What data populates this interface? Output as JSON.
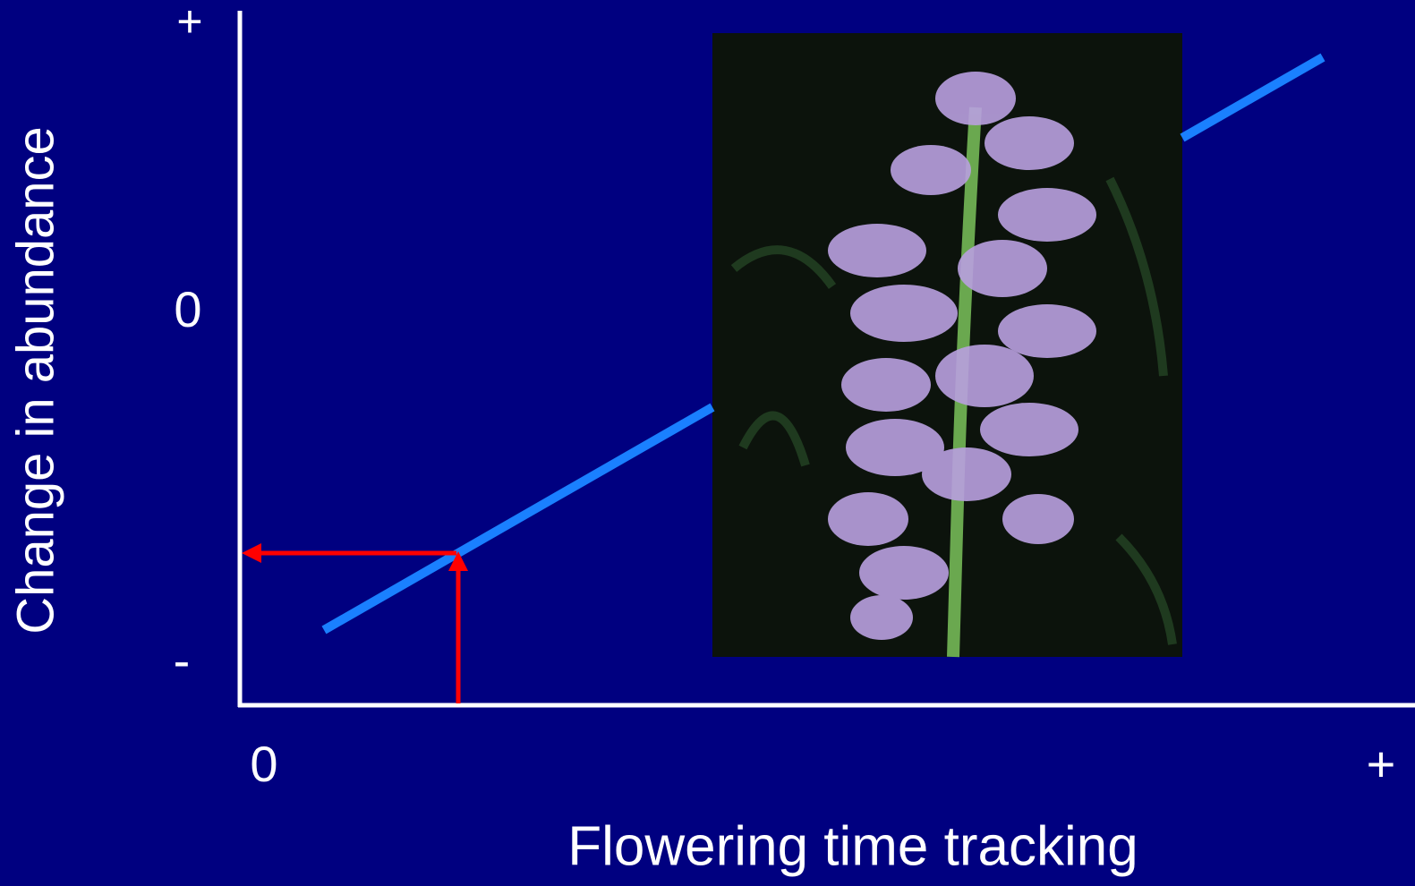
{
  "y_axis": {
    "label": "Change in abundance",
    "ticks": [
      "+",
      "0",
      "-"
    ]
  },
  "x_axis": {
    "label": "Flowering time tracking",
    "ticks": [
      "0",
      "+"
    ]
  }
}
